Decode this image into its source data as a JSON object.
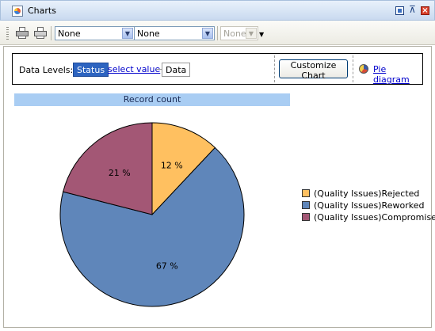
{
  "window": {
    "title": "Charts"
  },
  "toolbar": {
    "combo1": "None",
    "combo2": "None",
    "combo3": "None",
    "icons": [
      "print-icon",
      "print-preview-icon"
    ]
  },
  "levels": {
    "label": "Data Levels:",
    "status": "Status",
    "select_value": "select value",
    "data": "Data"
  },
  "actions": {
    "customize": "Customize Chart",
    "pie_link": "Pie diagram"
  },
  "chart_data": {
    "type": "pie",
    "title": "Record count",
    "categories": [
      "(Quality Issues)Rejected",
      "(Quality Issues)Reworked",
      "(Quality Issues)Compromised"
    ],
    "values": [
      12,
      67,
      21
    ],
    "labels": [
      "12 %",
      "67 %",
      "21 %"
    ],
    "colors": [
      "#ffc060",
      "#5f86ba",
      "#a35775"
    ],
    "legend_position": "right"
  }
}
